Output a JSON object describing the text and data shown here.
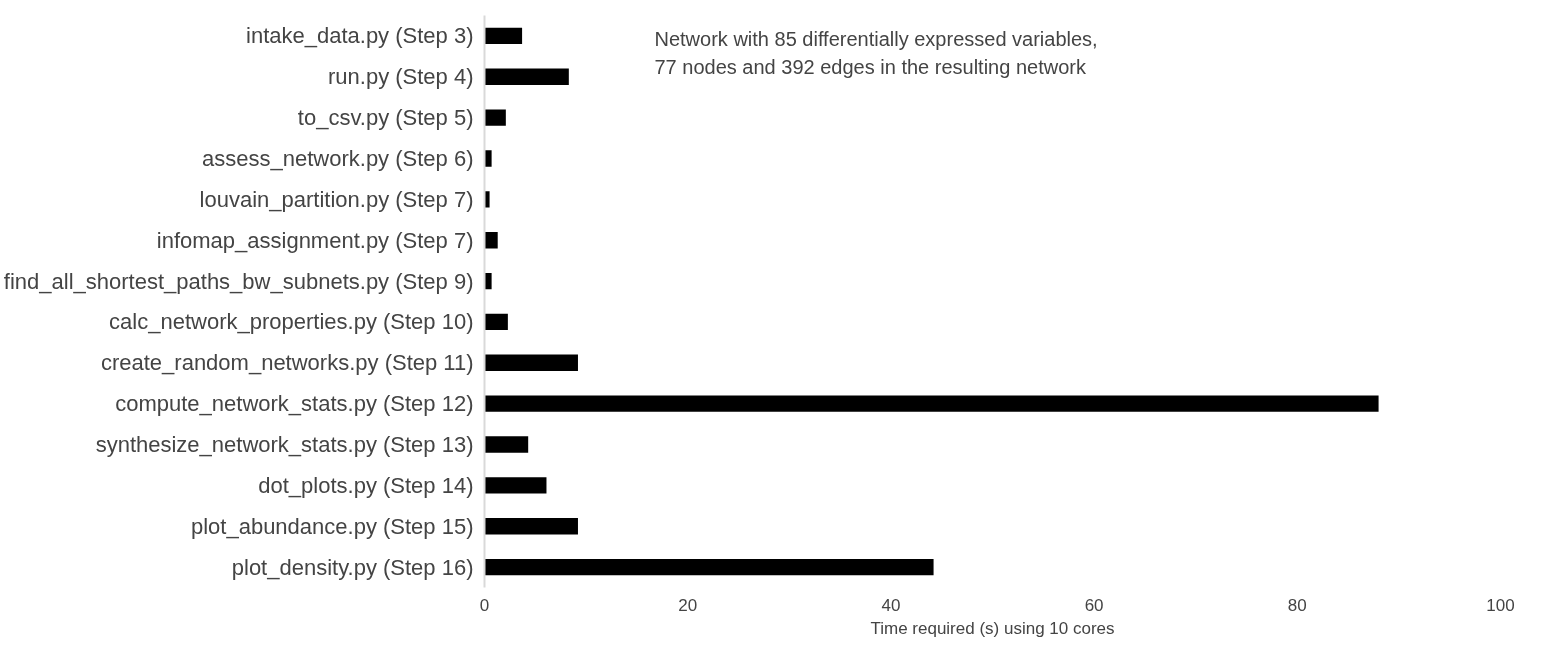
{
  "chart_data": {
    "type": "bar",
    "orientation": "horizontal",
    "xlabel": "Time required (s) using 10 cores",
    "categories": [
      "intake_data.py (Step 3)",
      "run.py (Step 4)",
      "to_csv.py (Step 5)",
      "assess_network.py (Step 6)",
      "louvain_partition.py (Step 7)",
      "infomap_assignment.py (Step 7)",
      "find_all_shortest_paths_bw_subnets.py (Step 9)",
      "calc_network_properties.py (Step 10)",
      "create_random_networks.py (Step 11)",
      "compute_network_stats.py (Step 12)",
      "synthesize_network_stats.py (Step 13)",
      "dot_plots.py (Step 14)",
      "plot_abundance.py (Step 15)",
      "plot_density.py (Step 16)"
    ],
    "values": [
      3.7,
      8.3,
      2.1,
      0.7,
      0.5,
      1.3,
      0.7,
      2.3,
      9.2,
      88.0,
      4.3,
      6.1,
      9.2,
      44.2
    ],
    "color": "#000000",
    "xlim": [
      0,
      100
    ],
    "xticks": [
      0,
      20,
      40,
      60,
      80,
      100
    ],
    "grid": false,
    "annotations": [
      "Network with 85 differentially expressed variables,\n77 nodes and 392 edges in the resulting network"
    ]
  }
}
